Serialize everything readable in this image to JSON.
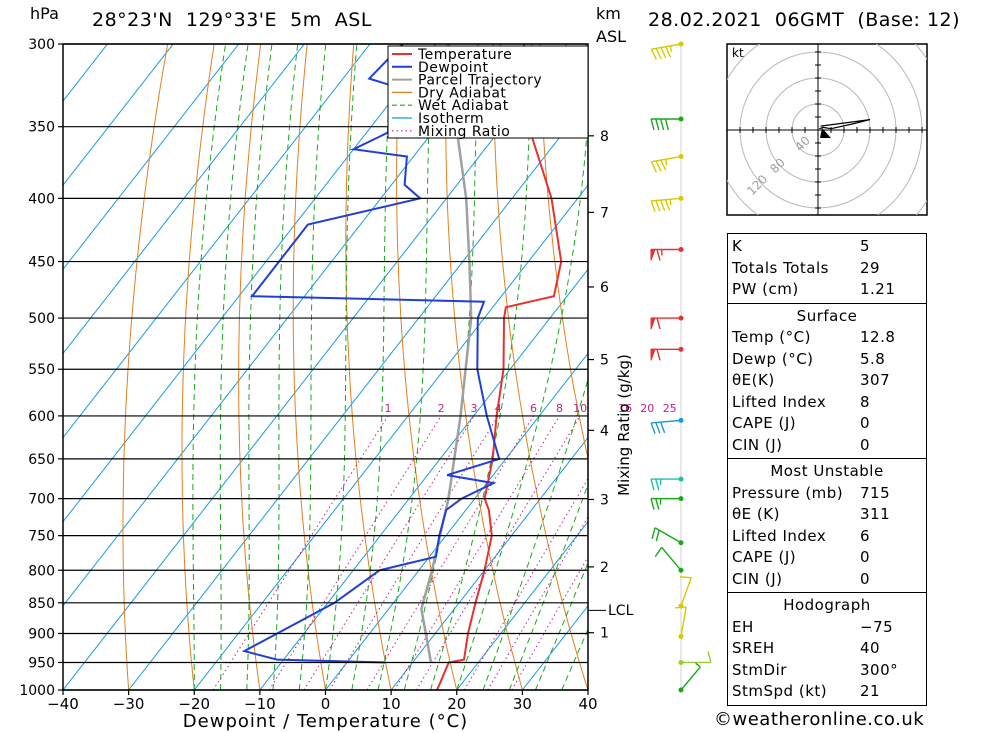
{
  "header": {
    "hpa": "hPa",
    "location": "28°23'N  129°33'E  5m  ASL",
    "km": "km",
    "asl": "ASL",
    "date": "28.02.2021  06GMT  (Base: 12)"
  },
  "chart_data": {
    "type": "line",
    "xlabel": "Dewpoint / Temperature (°C)",
    "ylabel": "hPa",
    "xlim": [
      -40,
      40
    ],
    "ylim": [
      1000,
      300
    ],
    "x_ticks": [
      "−40",
      "−30",
      "−20",
      "−10",
      "0",
      "10",
      "20",
      "30",
      "40"
    ],
    "pressure_ticks": [
      "300",
      "350",
      "400",
      "450",
      "500",
      "550",
      "600",
      "650",
      "700",
      "750",
      "800",
      "850",
      "900",
      "950",
      "1000"
    ],
    "km_ticks": [
      "8",
      "7",
      "6",
      "5",
      "4",
      "3",
      "2",
      "1"
    ],
    "lcl_label": "LCL",
    "mixing_ratio_label": "Mixing Ratio (g/kg)",
    "mixing_ratio_values": [
      "1",
      "2",
      "3",
      "4",
      "6",
      "8",
      "10",
      "16",
      "20",
      "25"
    ],
    "legend": [
      "Temperature",
      "Dewpoint",
      "Parcel Trajectory",
      "Dry Adiabat",
      "Wet Adiabat",
      "Isotherm",
      "Mixing Ratio"
    ],
    "colors": {
      "temperature": "#e83030",
      "dewpoint": "#1f3fd8",
      "parcel": "#a0a0a0",
      "dry_adiabat": "#e08020",
      "wet_adiabat": "#1aa81a",
      "isotherm": "#1a9ae0",
      "mixing_ratio": "#c0208c"
    },
    "temperature": [
      {
        "p": 1000,
        "t": 17
      },
      {
        "p": 950,
        "t": 15.5
      },
      {
        "p": 945,
        "t": 17.5
      },
      {
        "p": 900,
        "t": 15
      },
      {
        "p": 850,
        "t": 12.5
      },
      {
        "p": 800,
        "t": 10
      },
      {
        "p": 750,
        "t": 7
      },
      {
        "p": 715,
        "t": 3.5
      },
      {
        "p": 700,
        "t": 1.5
      },
      {
        "p": 650,
        "t": -2
      },
      {
        "p": 600,
        "t": -6.5
      },
      {
        "p": 550,
        "t": -11
      },
      {
        "p": 500,
        "t": -17
      },
      {
        "p": 490,
        "t": -18
      },
      {
        "p": 480,
        "t": -12
      },
      {
        "p": 450,
        "t": -15
      },
      {
        "p": 400,
        "t": -24
      },
      {
        "p": 370,
        "t": -31
      },
      {
        "p": 350,
        "t": -36
      },
      {
        "p": 320,
        "t": -43
      },
      {
        "p": 300,
        "t": -46.5
      }
    ],
    "dewpoint": [
      {
        "p": 950,
        "t": 5.8
      },
      {
        "p": 945,
        "t": -11
      },
      {
        "p": 930,
        "t": -17
      },
      {
        "p": 850,
        "t": -9
      },
      {
        "p": 800,
        "t": -6
      },
      {
        "p": 780,
        "t": 1
      },
      {
        "p": 750,
        "t": -1
      },
      {
        "p": 715,
        "t": -3
      },
      {
        "p": 700,
        "t": -2
      },
      {
        "p": 680,
        "t": 1
      },
      {
        "p": 670,
        "t": -7
      },
      {
        "p": 650,
        "t": -1
      },
      {
        "p": 600,
        "t": -8
      },
      {
        "p": 550,
        "t": -15
      },
      {
        "p": 500,
        "t": -21
      },
      {
        "p": 485,
        "t": -22
      },
      {
        "p": 480,
        "t": -58
      },
      {
        "p": 420,
        "t": -58
      },
      {
        "p": 400,
        "t": -44
      },
      {
        "p": 390,
        "t": -48
      },
      {
        "p": 370,
        "t": -51
      },
      {
        "p": 365,
        "t": -60
      },
      {
        "p": 335,
        "t": -51
      },
      {
        "p": 320,
        "t": -66
      },
      {
        "p": 300,
        "t": -65
      }
    ],
    "parcel": [
      {
        "p": 950,
        "t": 12.8
      },
      {
        "p": 860,
        "t": 5
      },
      {
        "p": 800,
        "t": 2
      },
      {
        "p": 700,
        "t": -4
      },
      {
        "p": 600,
        "t": -12
      },
      {
        "p": 500,
        "t": -22
      },
      {
        "p": 450,
        "t": -29
      },
      {
        "p": 400,
        "t": -37
      },
      {
        "p": 350,
        "t": -47
      },
      {
        "p": 300,
        "t": -58
      }
    ],
    "wind_barbs": [
      {
        "p": 300,
        "dir": 260,
        "spd": 45,
        "color": "#d8c800"
      },
      {
        "p": 345,
        "dir": 270,
        "spd": 40,
        "color": "#1aa81a"
      },
      {
        "p": 370,
        "dir": 260,
        "spd": 35,
        "color": "#d8c800"
      },
      {
        "p": 400,
        "dir": 265,
        "spd": 45,
        "color": "#d8c800"
      },
      {
        "p": 440,
        "dir": 270,
        "spd": 65,
        "color": "#e83030"
      },
      {
        "p": 500,
        "dir": 270,
        "spd": 60,
        "color": "#e83030"
      },
      {
        "p": 530,
        "dir": 270,
        "spd": 60,
        "color": "#e83030"
      },
      {
        "p": 605,
        "dir": 265,
        "spd": 30,
        "color": "#1a9ae0"
      },
      {
        "p": 675,
        "dir": 270,
        "spd": 25,
        "color": "#20c0a0"
      },
      {
        "p": 700,
        "dir": 270,
        "spd": 25,
        "color": "#1aa81a"
      },
      {
        "p": 760,
        "dir": 300,
        "spd": 20,
        "color": "#1aa81a"
      },
      {
        "p": 800,
        "dir": 320,
        "spd": 10,
        "color": "#1aa81a"
      },
      {
        "p": 855,
        "dir": 20,
        "spd": 10,
        "color": "#d8c800"
      },
      {
        "p": 905,
        "dir": 10,
        "spd": 10,
        "color": "#d8c800"
      },
      {
        "p": 950,
        "dir": 90,
        "spd": 10,
        "color": "#9acd32"
      },
      {
        "p": 1000,
        "dir": 40,
        "spd": 5,
        "color": "#1aa81a"
      }
    ],
    "hodograph": {
      "unit_label": "kt",
      "ring_labels": [
        "40",
        "80",
        "120"
      ],
      "points": [
        {
          "u": 1,
          "v": 1
        },
        {
          "u": 4,
          "v": 2
        },
        {
          "u": 10,
          "v": 1
        },
        {
          "u": 28,
          "v": 5
        },
        {
          "u": 40,
          "v": 8
        },
        {
          "u": 2,
          "v": 3
        }
      ]
    }
  },
  "indices": {
    "general": [
      {
        "label": "K",
        "value": "5"
      },
      {
        "label": "Totals Totals",
        "value": "29"
      },
      {
        "label": "PW (cm)",
        "value": "1.21"
      }
    ],
    "surface": {
      "title": "Surface",
      "rows": [
        {
          "label": "Temp (°C)",
          "value": "12.8"
        },
        {
          "label": "Dewp (°C)",
          "value": "5.8"
        },
        {
          "label": "θE(K)",
          "value": "307"
        },
        {
          "label": "Lifted Index",
          "value": "8"
        },
        {
          "label": "CAPE (J)",
          "value": "0"
        },
        {
          "label": "CIN (J)",
          "value": "0"
        }
      ]
    },
    "most_unstable": {
      "title": "Most Unstable",
      "rows": [
        {
          "label": "Pressure (mb)",
          "value": "715"
        },
        {
          "label": "θE (K)",
          "value": "311"
        },
        {
          "label": "Lifted Index",
          "value": "6"
        },
        {
          "label": "CAPE (J)",
          "value": "0"
        },
        {
          "label": "CIN (J)",
          "value": "0"
        }
      ]
    },
    "hodograph": {
      "title": "Hodograph",
      "rows": [
        {
          "label": "EH",
          "value": "−75"
        },
        {
          "label": "SREH",
          "value": "40"
        },
        {
          "label": "StmDir",
          "value": "300°"
        },
        {
          "label": "StmSpd (kt)",
          "value": "21"
        }
      ]
    }
  },
  "credit": "©weatheronline.co.uk"
}
